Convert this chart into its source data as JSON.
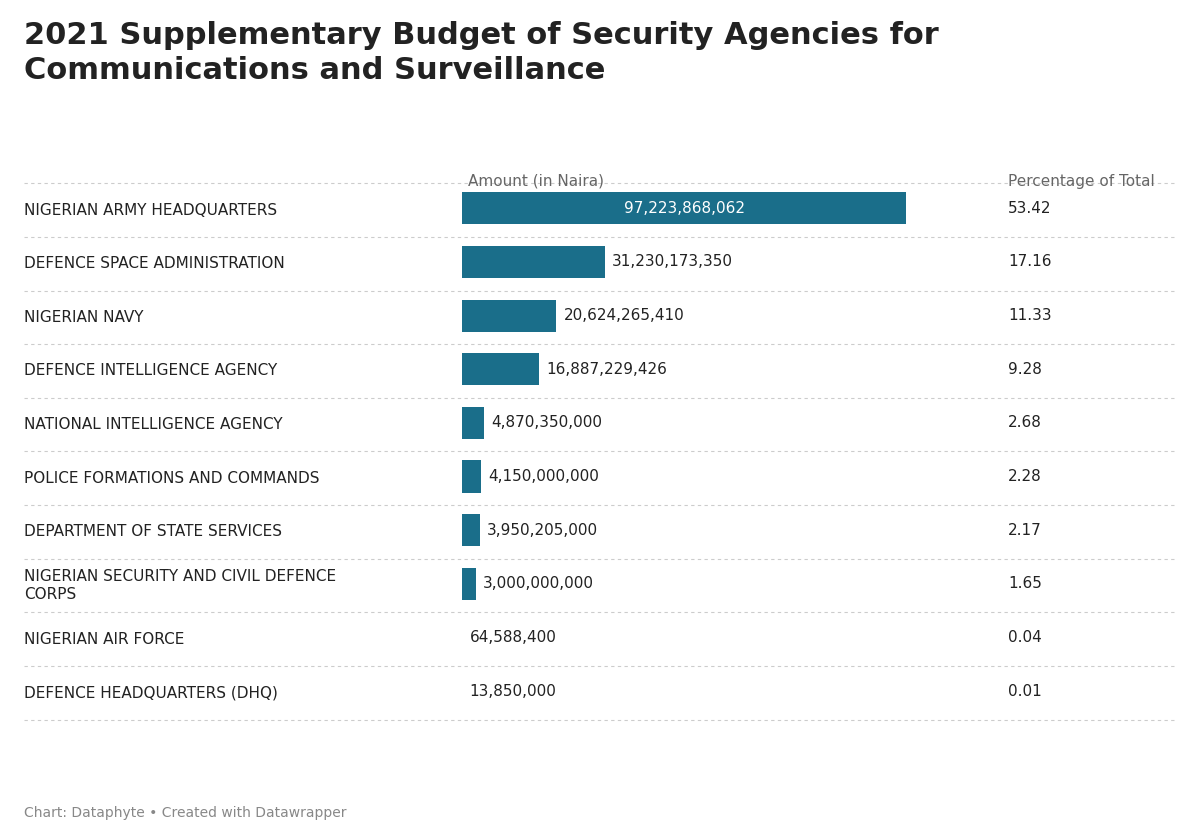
{
  "title": "2021 Supplementary Budget of Security Agencies for\nCommunications and Surveillance",
  "col_header_amount": "Amount (in Naira)",
  "col_header_pct": "Percentage of Total",
  "footer": "Chart: Dataphyte • Created with Datawrapper",
  "agencies": [
    "NIGERIAN ARMY HEADQUARTERS",
    "DEFENCE SPACE ADMINISTRATION",
    "NIGERIAN NAVY",
    "DEFENCE INTELLIGENCE AGENCY",
    "NATIONAL INTELLIGENCE AGENCY",
    "POLICE FORMATIONS AND COMMANDS",
    "DEPARTMENT OF STATE SERVICES",
    "NIGERIAN SECURITY AND CIVIL DEFENCE\nCORPS",
    "NIGERIAN AIR FORCE",
    "DEFENCE HEADQUARTERS (DHQ)"
  ],
  "amounts": [
    97223868062,
    31230173350,
    20624265410,
    16887229426,
    4870350000,
    4150000000,
    3950205000,
    3000000000,
    64588400,
    13850000
  ],
  "amount_labels": [
    "97,223,868,062",
    "31,230,173,350",
    "20,624,265,410",
    "16,887,229,426",
    "4,870,350,000",
    "4,150,000,000",
    "3,950,205,000",
    "3,000,000,000",
    "64,588,400",
    "13,850,000"
  ],
  "percentages": [
    "53.42",
    "17.16",
    "11.33",
    "9.28",
    "2.68",
    "2.28",
    "2.17",
    "1.65",
    "0.04",
    "0.01"
  ],
  "bar_color": "#1a6e8a",
  "first_bar_text_color": "#ffffff",
  "text_color": "#222222",
  "header_color": "#666666",
  "background_color": "#ffffff",
  "title_fontsize": 22,
  "label_fontsize": 11,
  "header_fontsize": 11,
  "footer_fontsize": 10,
  "divider_color": "#cccccc"
}
